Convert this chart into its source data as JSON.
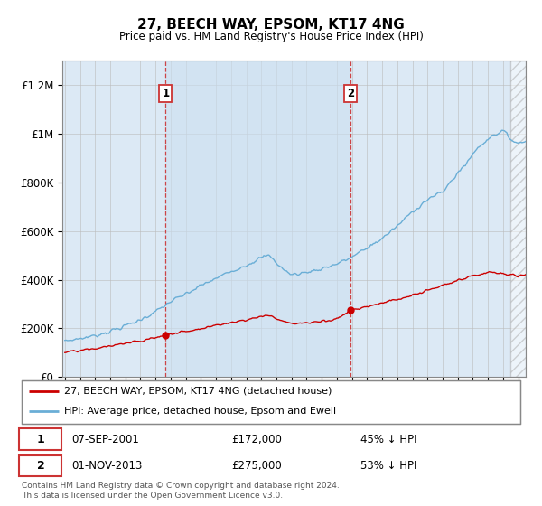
{
  "title": "27, BEECH WAY, EPSOM, KT17 4NG",
  "subtitle": "Price paid vs. HM Land Registry's House Price Index (HPI)",
  "background_color": "#dce9f5",
  "plot_bg_color": "#dce9f5",
  "red_line_color": "#cc0000",
  "blue_line_color": "#6aaed6",
  "marker1_idx": 80,
  "marker1_value": 172000,
  "marker1_date": "07-SEP-2001",
  "marker1_pct": "45% ↓ HPI",
  "marker2_idx": 227,
  "marker2_value": 275000,
  "marker2_date": "01-NOV-2013",
  "marker2_pct": "53% ↓ HPI",
  "legend1": "27, BEECH WAY, EPSOM, KT17 4NG (detached house)",
  "legend2": "HPI: Average price, detached house, Epsom and Ewell",
  "footer": "Contains HM Land Registry data © Crown copyright and database right 2024.\nThis data is licensed under the Open Government Licence v3.0.",
  "ylim": [
    0,
    1300000
  ],
  "yticks": [
    0,
    200000,
    400000,
    600000,
    800000,
    1000000,
    1200000
  ],
  "n_months": 367,
  "year_start": 1995,
  "year_end": 2025
}
